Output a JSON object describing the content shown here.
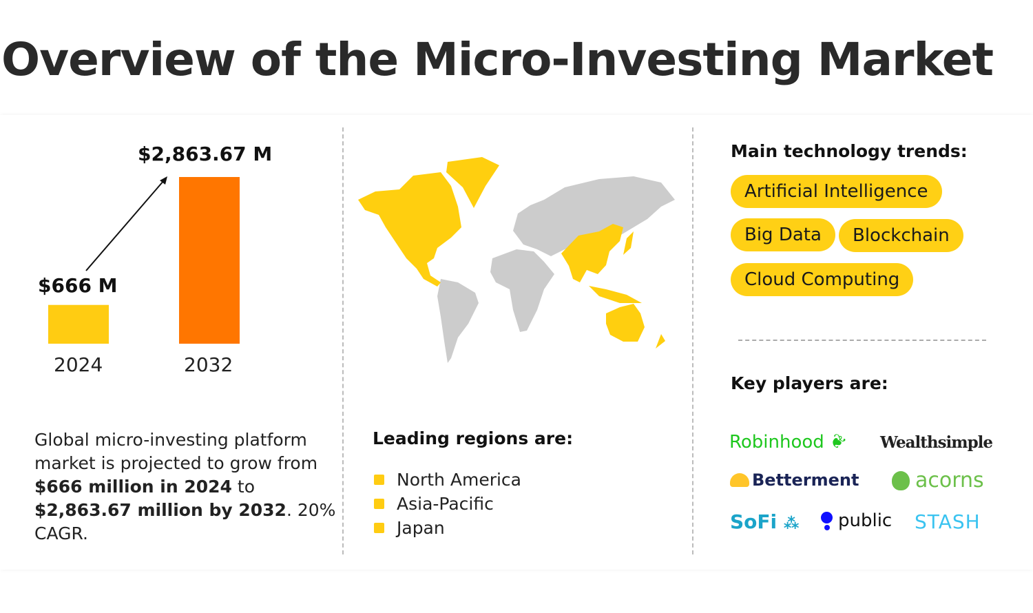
{
  "title": "Overview of the Micro-Investing Market",
  "chart_data": {
    "type": "bar",
    "categories": [
      "2024",
      "2032"
    ],
    "values": [
      666,
      2863.67
    ],
    "data_labels": [
      "$666 M",
      "$2,863.67 M"
    ],
    "colors": [
      "#ffcc12",
      "#ff7600"
    ]
  },
  "description": {
    "p1": "Global micro-investing platform market is projected to grow from ",
    "b1": "$666 million in 2024",
    "p2": " to ",
    "b2": "$2,863.67 million by 2032",
    "p3": ". 20% CAGR."
  },
  "regions": {
    "heading": "Leading regions are:",
    "items": [
      "North America",
      "Asia-Pacific",
      "Japan"
    ],
    "highlight_color": "#ffcc12",
    "other_color": "#cccccc"
  },
  "trends": {
    "heading": "Main technology trends:",
    "items": [
      "Artificial Intelligence",
      "Big Data",
      "Blockchain",
      "Cloud Computing"
    ]
  },
  "players": {
    "heading": "Key players are:",
    "items": [
      "Robinhood",
      "Wealthsimple",
      "Betterment",
      "acorns",
      "SoFi",
      "public",
      "STASH"
    ]
  }
}
